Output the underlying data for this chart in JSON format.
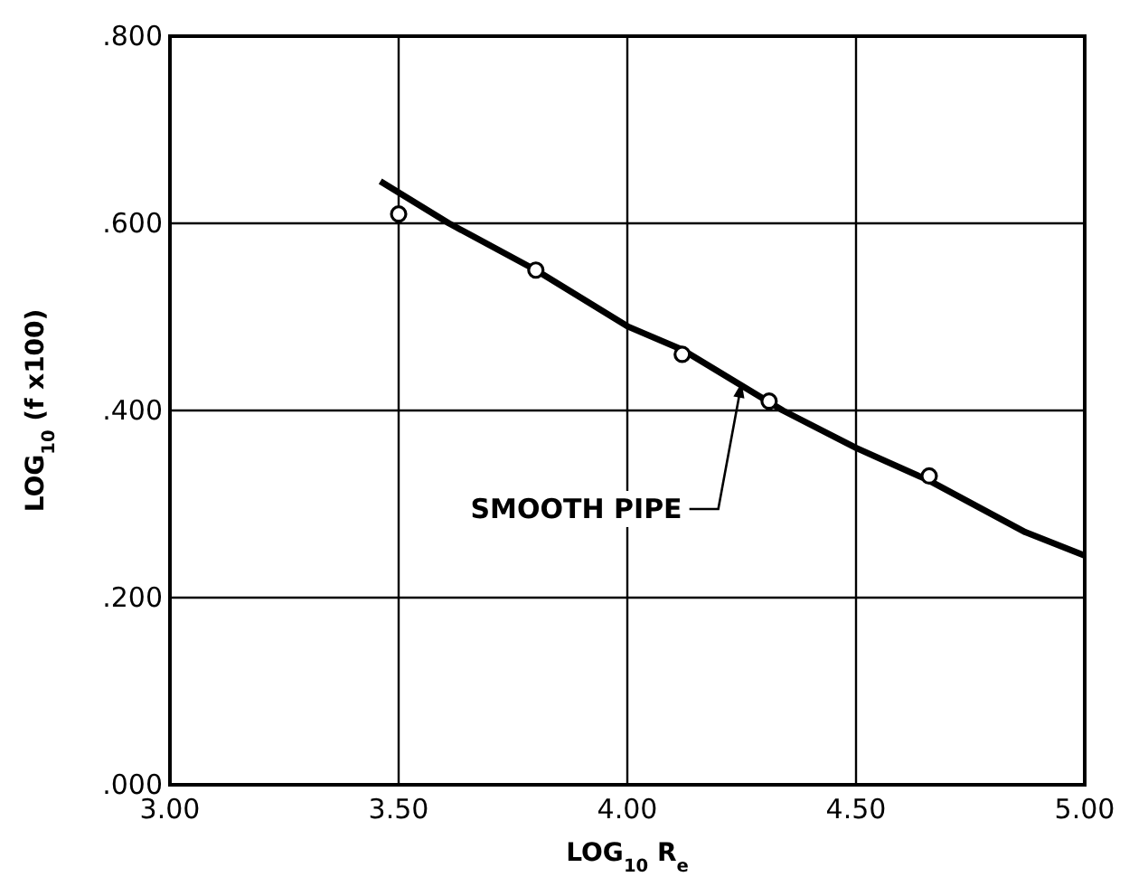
{
  "chart_data": {
    "type": "scatter",
    "xlabel": "LOG$_{10}$ R$_{e}$",
    "ylabel": "LOG$_{10}$ (f x100)",
    "xlim": [
      3.0,
      5.0
    ],
    "ylim": [
      0.0,
      0.8
    ],
    "xticks": [
      {
        "value": 3.0,
        "label": "3.00"
      },
      {
        "value": 3.5,
        "label": "3.50"
      },
      {
        "value": 4.0,
        "label": "4.00"
      },
      {
        "value": 4.5,
        "label": "4.50"
      },
      {
        "value": 5.0,
        "label": "5.00"
      }
    ],
    "yticks": [
      {
        "value": 0.0,
        "label": ".000"
      },
      {
        "value": 0.2,
        "label": ".200"
      },
      {
        "value": 0.4,
        "label": ".400"
      },
      {
        "value": 0.6,
        "label": ".600"
      },
      {
        "value": 0.8,
        "label": ".800"
      }
    ],
    "grid": true,
    "series": [
      {
        "type": "line",
        "color": "#000000",
        "marker": "none",
        "x": [
          3.46,
          3.61,
          3.8,
          4.0,
          4.12,
          4.34,
          4.5,
          4.66,
          4.87,
          5.0
        ],
        "values": [
          0.645,
          0.6,
          0.55,
          0.49,
          0.465,
          0.4,
          0.36,
          0.325,
          0.27,
          0.245
        ]
      },
      {
        "color": "#000000",
        "marker": "circle",
        "x": [
          3.5,
          3.8,
          4.12,
          4.31,
          4.66
        ],
        "values": [
          0.61,
          0.55,
          0.46,
          0.41,
          0.33
        ]
      }
    ],
    "annotations": [
      {
        "text": "SMOOTH PIPE",
        "x": 4.25,
        "y": 0.43
      }
    ]
  }
}
